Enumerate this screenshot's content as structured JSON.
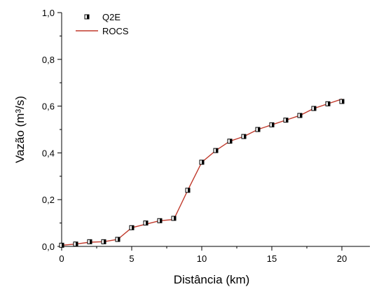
{
  "chart_data": {
    "type": "line",
    "xlabel": "Distância (km)",
    "ylabel": "Vazão (m³/s)",
    "xlim": [
      0,
      22
    ],
    "ylim": [
      0,
      1.0
    ],
    "x_ticks": [
      0,
      5,
      10,
      15,
      20
    ],
    "x_tick_labels": [
      "0",
      "5",
      "10",
      "15",
      "20"
    ],
    "y_ticks": [
      0.0,
      0.2,
      0.4,
      0.6,
      0.8,
      1.0
    ],
    "y_tick_labels": [
      "0,0",
      "0,2",
      "0,4",
      "0,6",
      "0,8",
      "1,0"
    ],
    "legend_position": "top-left",
    "grid": false,
    "series": [
      {
        "name": "Q2E",
        "style": "scatter",
        "color": "#000000",
        "x": [
          0,
          1,
          2,
          3,
          4,
          5,
          6,
          7,
          8,
          9,
          10,
          11,
          12,
          13,
          14,
          15,
          16,
          17,
          18,
          19,
          20
        ],
        "y": [
          0.005,
          0.01,
          0.02,
          0.02,
          0.03,
          0.08,
          0.1,
          0.11,
          0.12,
          0.24,
          0.36,
          0.41,
          0.45,
          0.47,
          0.5,
          0.52,
          0.54,
          0.56,
          0.59,
          0.61,
          0.62
        ]
      },
      {
        "name": "ROCS",
        "style": "line",
        "color": "#c0392b",
        "x": [
          0,
          1,
          2,
          3,
          4,
          5,
          6,
          7,
          8,
          9,
          10,
          11,
          12,
          13,
          14,
          15,
          16,
          17,
          18,
          19,
          20
        ],
        "y": [
          0.005,
          0.01,
          0.018,
          0.02,
          0.03,
          0.08,
          0.095,
          0.11,
          0.115,
          0.24,
          0.36,
          0.41,
          0.45,
          0.47,
          0.5,
          0.52,
          0.54,
          0.56,
          0.59,
          0.61,
          0.63
        ]
      }
    ]
  }
}
